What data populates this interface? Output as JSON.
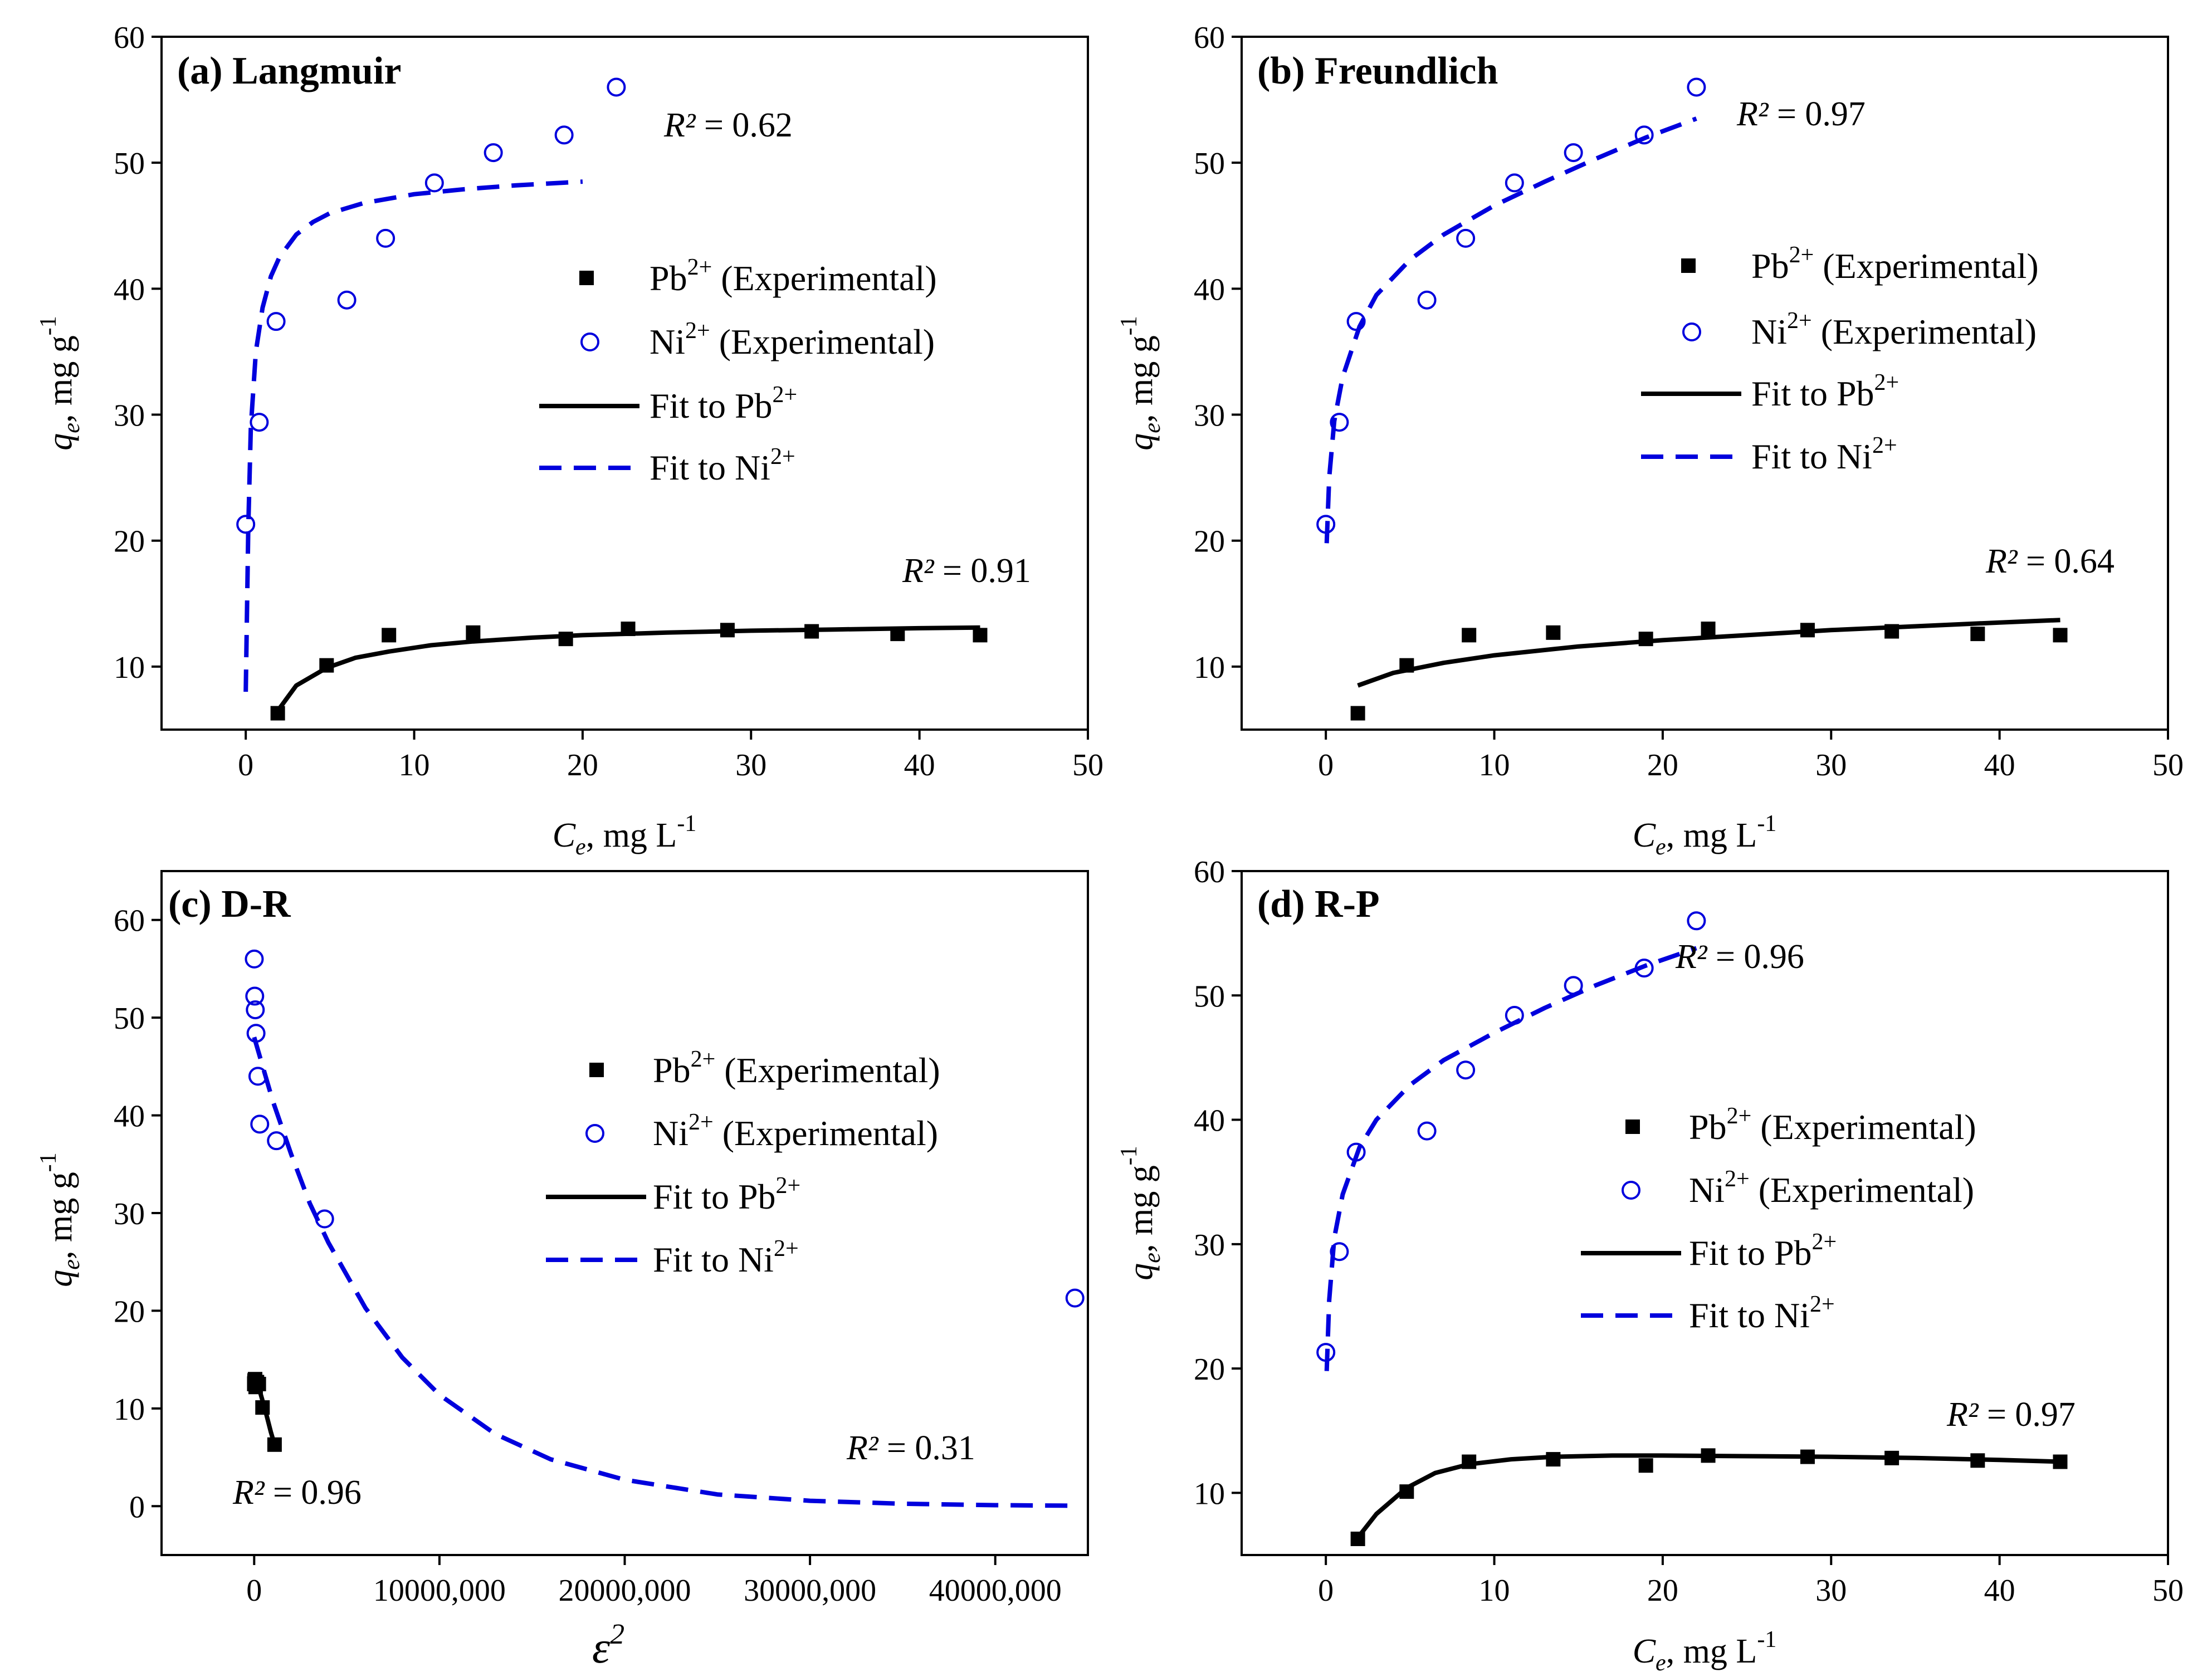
{
  "figure": {
    "colors": {
      "pb": "#000000",
      "ni": "#0000dd",
      "axis": "#000000"
    }
  },
  "chart_data": [
    {
      "id": "a",
      "type": "scatter",
      "title": "(a) Langmuir",
      "xlabel": "C_e, mg L^-1",
      "ylabel": "q_e, mg g^-1",
      "xlim": [
        -5,
        50
      ],
      "ylim": [
        5,
        60
      ],
      "xticks": [
        0,
        10,
        20,
        30,
        40,
        50
      ],
      "yticks": [
        10,
        20,
        30,
        40,
        50,
        60
      ],
      "xtick_labels": [
        "0",
        "10",
        "20",
        "30",
        "40",
        "50"
      ],
      "ytick_labels": [
        "10",
        "20",
        "30",
        "40",
        "50",
        "60"
      ],
      "legend": {
        "position": "center-right",
        "entries": [
          {
            "symbol": "square",
            "label": "Pb2+ (Experimental)"
          },
          {
            "symbol": "circle",
            "label": "Ni2+ (Experimental)"
          },
          {
            "symbol": "solid-line",
            "label": "Fit to Pb2+"
          },
          {
            "symbol": "dashed-line",
            "label": "Fit to Ni2+"
          }
        ]
      },
      "series": [
        {
          "name": "Pb2+ (Experimental)",
          "kind": "points",
          "marker": "square",
          "x": [
            1.9,
            4.8,
            8.5,
            13.5,
            19.0,
            22.7,
            28.6,
            33.6,
            38.7,
            43.6
          ],
          "y": [
            6.3,
            10.1,
            12.5,
            12.7,
            12.2,
            13.0,
            12.9,
            12.8,
            12.6,
            12.5
          ]
        },
        {
          "name": "Ni2+ (Experimental)",
          "kind": "points",
          "marker": "circle",
          "x": [
            0.0,
            0.8,
            1.8,
            6.0,
            8.3,
            11.2,
            14.7,
            18.9,
            22.0
          ],
          "y": [
            21.3,
            29.4,
            37.4,
            39.1,
            44.0,
            48.4,
            50.8,
            52.2,
            56.0
          ]
        },
        {
          "name": "Fit to Pb2+",
          "kind": "line",
          "dash": "solid",
          "x": [
            1.9,
            3.0,
            4.8,
            6.5,
            8.5,
            11.0,
            13.5,
            17.0,
            20.0,
            25.0,
            30.0,
            35.0,
            40.0,
            43.6
          ],
          "y": [
            6.5,
            8.5,
            9.9,
            10.7,
            11.2,
            11.7,
            12.0,
            12.3,
            12.5,
            12.7,
            12.85,
            12.95,
            13.05,
            13.1
          ]
        },
        {
          "name": "Fit to Ni2+",
          "kind": "line",
          "dash": "dashed",
          "x": [
            0.0,
            0.15,
            0.3,
            0.6,
            1.0,
            1.5,
            2.0,
            3.0,
            4.0,
            5.0,
            7.0,
            10.0,
            13.0,
            16.0,
            20.0
          ],
          "y": [
            8.0,
            21.0,
            29.0,
            35.0,
            38.5,
            41.0,
            42.5,
            44.3,
            45.3,
            46.0,
            46.8,
            47.5,
            47.9,
            48.2,
            48.5
          ]
        }
      ],
      "annotations": [
        {
          "text": "R² = 0.62",
          "x": 26,
          "y": 53
        },
        {
          "text": "R² = 0.91",
          "x": 43,
          "y": 16
        }
      ]
    },
    {
      "id": "b",
      "type": "scatter",
      "title": "(b) Freundlich",
      "xlabel": "C_e, mg L^-1",
      "ylabel": "q_e, mg g^-1",
      "xlim": [
        -5,
        50
      ],
      "ylim": [
        5,
        60
      ],
      "xticks": [
        0,
        10,
        20,
        30,
        40,
        50
      ],
      "yticks": [
        10,
        20,
        30,
        40,
        50,
        60
      ],
      "xtick_labels": [
        "0",
        "10",
        "20",
        "30",
        "40",
        "50"
      ],
      "ytick_labels": [
        "10",
        "20",
        "30",
        "40",
        "50",
        "60"
      ],
      "legend": {
        "position": "center-right",
        "entries": [
          {
            "symbol": "square",
            "label": "Pb2+ (Experimental)"
          },
          {
            "symbol": "circle",
            "label": "Ni2+ (Experimental)"
          },
          {
            "symbol": "solid-line",
            "label": "Fit to Pb2+"
          },
          {
            "symbol": "dashed-line",
            "label": "Fit to Ni2+"
          }
        ]
      },
      "series": [
        {
          "name": "Pb2+ (Experimental)",
          "kind": "points",
          "marker": "square",
          "x": [
            1.9,
            4.8,
            8.5,
            13.5,
            19.0,
            22.7,
            28.6,
            33.6,
            38.7,
            43.6
          ],
          "y": [
            6.3,
            10.1,
            12.5,
            12.7,
            12.2,
            13.0,
            12.9,
            12.8,
            12.6,
            12.5
          ]
        },
        {
          "name": "Ni2+ (Experimental)",
          "kind": "points",
          "marker": "circle",
          "x": [
            0.0,
            0.8,
            1.8,
            6.0,
            8.3,
            11.2,
            14.7,
            18.9,
            22.0
          ],
          "y": [
            21.3,
            29.4,
            37.4,
            39.1,
            44.0,
            48.4,
            50.8,
            52.2,
            56.0
          ]
        },
        {
          "name": "Fit to Pb2+",
          "kind": "line",
          "dash": "solid",
          "x": [
            1.9,
            4.0,
            7.0,
            10.0,
            15.0,
            20.0,
            25.0,
            30.0,
            35.0,
            40.0,
            43.6
          ],
          "y": [
            8.5,
            9.5,
            10.3,
            10.9,
            11.6,
            12.1,
            12.5,
            12.9,
            13.2,
            13.5,
            13.7
          ]
        },
        {
          "name": "Fit to Ni2+",
          "kind": "line",
          "dash": "dashed",
          "x": [
            0.05,
            0.2,
            0.5,
            1.0,
            2.0,
            3.0,
            5.0,
            7.0,
            10.0,
            13.0,
            16.0,
            19.0,
            22.0
          ],
          "y": [
            19.8,
            25.0,
            29.5,
            33.0,
            37.0,
            39.5,
            42.3,
            44.3,
            46.6,
            48.5,
            50.3,
            52.0,
            53.5
          ]
        }
      ],
      "annotations": [
        {
          "text": "R² = 0.97",
          "x": 28.5,
          "y": 53.5
        },
        {
          "text": "R² = 0.64",
          "x": 44,
          "y": 16.5
        }
      ]
    },
    {
      "id": "c",
      "type": "scatter",
      "title": "(c) D-R",
      "xlabel": "ε²",
      "ylabel": "q_e, mg g^-1",
      "xlim": [
        -5000000,
        45000000
      ],
      "ylim": [
        -5,
        65
      ],
      "xticks": [
        0,
        10000000,
        20000000,
        30000000,
        40000000
      ],
      "yticks": [
        0,
        10,
        20,
        30,
        40,
        50,
        60
      ],
      "xtick_labels": [
        "0",
        "10000,000",
        "20000,000",
        "30000,000",
        "40000,000"
      ],
      "ytick_labels": [
        "0",
        "10",
        "20",
        "30",
        "40",
        "50",
        "60"
      ],
      "legend": {
        "position": "center-right",
        "entries": [
          {
            "symbol": "square",
            "label": "Pb2+ (Experimental)"
          },
          {
            "symbol": "circle",
            "label": "Ni2+ (Experimental)"
          },
          {
            "symbol": "solid-line",
            "label": "Fit to Pb2+"
          },
          {
            "symbol": "dashed-line",
            "label": "Fit to Ni2+"
          }
        ]
      },
      "series": [
        {
          "name": "Pb2+ (Experimental)",
          "kind": "points",
          "marker": "square",
          "x": [
            5000,
            10000,
            20000,
            30000,
            50000,
            80000,
            150000,
            250000,
            450000,
            1100000
          ],
          "y": [
            12.5,
            12.6,
            12.8,
            12.9,
            13.0,
            12.2,
            12.7,
            12.5,
            10.1,
            6.3
          ]
        },
        {
          "name": "Ni2+ (Experimental)",
          "kind": "points",
          "marker": "circle",
          "x": [
            5000,
            30000,
            60000,
            100000,
            200000,
            300000,
            1200000,
            3800000,
            44300000
          ],
          "y": [
            56.0,
            52.2,
            50.8,
            48.4,
            44.0,
            39.1,
            37.4,
            29.4,
            21.3
          ]
        },
        {
          "name": "Fit to Pb2+",
          "kind": "line",
          "dash": "solid",
          "x": [
            0,
            300000,
            600000,
            900000,
            1100000
          ],
          "y": [
            13.0,
            11.8,
            9.8,
            7.6,
            6.3
          ]
        },
        {
          "name": "Fit to Ni2+",
          "kind": "line",
          "dash": "dashed",
          "x": [
            0,
            1000000,
            2000000,
            3000000,
            4000000,
            6000000,
            8000000,
            10000000,
            13000000,
            16000000,
            20000000,
            25000000,
            30000000,
            35000000,
            40000000,
            44000000
          ],
          "y": [
            48.0,
            41.5,
            36.0,
            31.0,
            27.0,
            20.3,
            15.2,
            11.4,
            7.4,
            4.8,
            2.7,
            1.2,
            0.55,
            0.25,
            0.1,
            0.05
          ]
        }
      ],
      "annotations": [
        {
          "text": "R² = 0.31",
          "x": 37000000,
          "y": 5
        },
        {
          "text": "R² = 0.96",
          "x": 3200000,
          "y": 1
        }
      ]
    },
    {
      "id": "d",
      "type": "scatter",
      "title": "(d) R-P",
      "xlabel": "C_e, mg L^-1",
      "ylabel": "q_e, mg g^-1",
      "xlim": [
        -5,
        50
      ],
      "ylim": [
        5,
        60
      ],
      "xticks": [
        0,
        10,
        20,
        30,
        40,
        50
      ],
      "yticks": [
        10,
        20,
        30,
        40,
        50,
        60
      ],
      "xtick_labels": [
        "0",
        "10",
        "20",
        "30",
        "40",
        "50"
      ],
      "ytick_labels": [
        "10",
        "20",
        "30",
        "40",
        "50",
        "60"
      ],
      "legend": {
        "position": "center-right",
        "entries": [
          {
            "symbol": "square",
            "label": "Pb2+ (Experimental)"
          },
          {
            "symbol": "circle",
            "label": "Ni2+ (Experimental)"
          },
          {
            "symbol": "solid-line",
            "label": "Fit to Pb2+"
          },
          {
            "symbol": "dashed-line",
            "label": "Fit to Ni2+"
          }
        ]
      },
      "series": [
        {
          "name": "Pb2+ (Experimental)",
          "kind": "points",
          "marker": "square",
          "x": [
            1.9,
            4.8,
            8.5,
            13.5,
            19.0,
            22.7,
            28.6,
            33.6,
            38.7,
            43.6
          ],
          "y": [
            6.3,
            10.1,
            12.5,
            12.7,
            12.2,
            13.0,
            12.9,
            12.8,
            12.6,
            12.5
          ]
        },
        {
          "name": "Ni2+ (Experimental)",
          "kind": "points",
          "marker": "circle",
          "x": [
            0.0,
            0.8,
            1.8,
            6.0,
            8.3,
            11.2,
            14.7,
            18.9,
            22.0
          ],
          "y": [
            21.3,
            29.4,
            37.4,
            39.1,
            44.0,
            48.4,
            50.8,
            52.2,
            56.0
          ]
        },
        {
          "name": "Fit to Pb2+",
          "kind": "line",
          "dash": "solid",
          "x": [
            1.9,
            3.0,
            4.8,
            6.5,
            8.5,
            11.0,
            13.5,
            17.0,
            20.0,
            25.0,
            30.0,
            35.0,
            40.0,
            43.6
          ],
          "y": [
            6.4,
            8.3,
            10.4,
            11.6,
            12.3,
            12.7,
            12.9,
            13.0,
            13.0,
            12.95,
            12.9,
            12.8,
            12.65,
            12.5
          ]
        },
        {
          "name": "Fit to Ni2+",
          "kind": "line",
          "dash": "dashed",
          "x": [
            0.05,
            0.2,
            0.5,
            1.0,
            2.0,
            3.0,
            5.0,
            7.0,
            10.0,
            13.0,
            16.0,
            19.0,
            22.0
          ],
          "y": [
            19.8,
            25.5,
            30.5,
            34.0,
            37.8,
            40.0,
            42.8,
            44.8,
            47.0,
            49.0,
            50.8,
            52.4,
            53.8
          ]
        }
      ],
      "annotations": [
        {
          "text": "R² = 0.96",
          "x": 26,
          "y": 53
        },
        {
          "text": "R² = 0.97",
          "x": 41.5,
          "y": 15.5
        }
      ]
    }
  ]
}
